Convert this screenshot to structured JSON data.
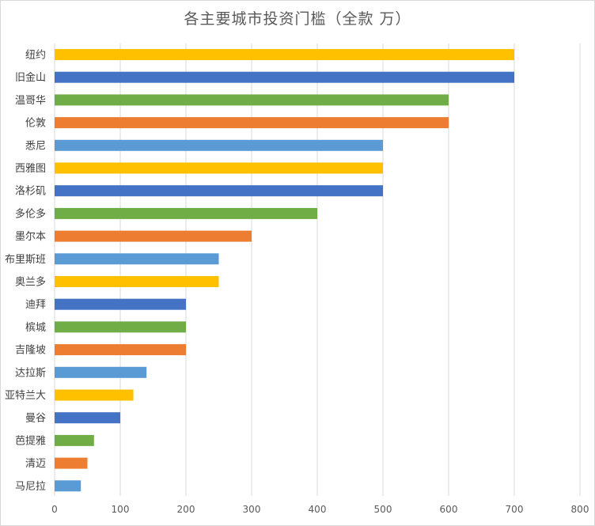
{
  "chart_data": {
    "type": "bar",
    "orientation": "horizontal",
    "title": "各主要城市投资门槛（全款 万）",
    "xlabel": "",
    "ylabel": "",
    "xlim": [
      0,
      800
    ],
    "x_ticks": [
      0,
      100,
      200,
      300,
      400,
      500,
      600,
      700,
      800
    ],
    "grid": "vertical",
    "legend": "none",
    "categories": [
      "纽约",
      "旧金山",
      "温哥华",
      "伦敦",
      "悉尼",
      "西雅图",
      "洛杉矶",
      "多伦多",
      "墨尔本",
      "布里斯班",
      "奥兰多",
      "迪拜",
      "槟城",
      "吉隆坡",
      "达拉斯",
      "亚特兰大",
      "曼谷",
      "芭提雅",
      "清迈",
      "马尼拉"
    ],
    "values": [
      700,
      700,
      600,
      600,
      500,
      500,
      500,
      400,
      300,
      250,
      250,
      200,
      200,
      200,
      140,
      120,
      100,
      60,
      50,
      40
    ],
    "palette": [
      "#ffc000",
      "#4472c4",
      "#70ad47",
      "#ed7d31",
      "#5b9bd5"
    ],
    "gridline_color": "#d9d9d9"
  }
}
